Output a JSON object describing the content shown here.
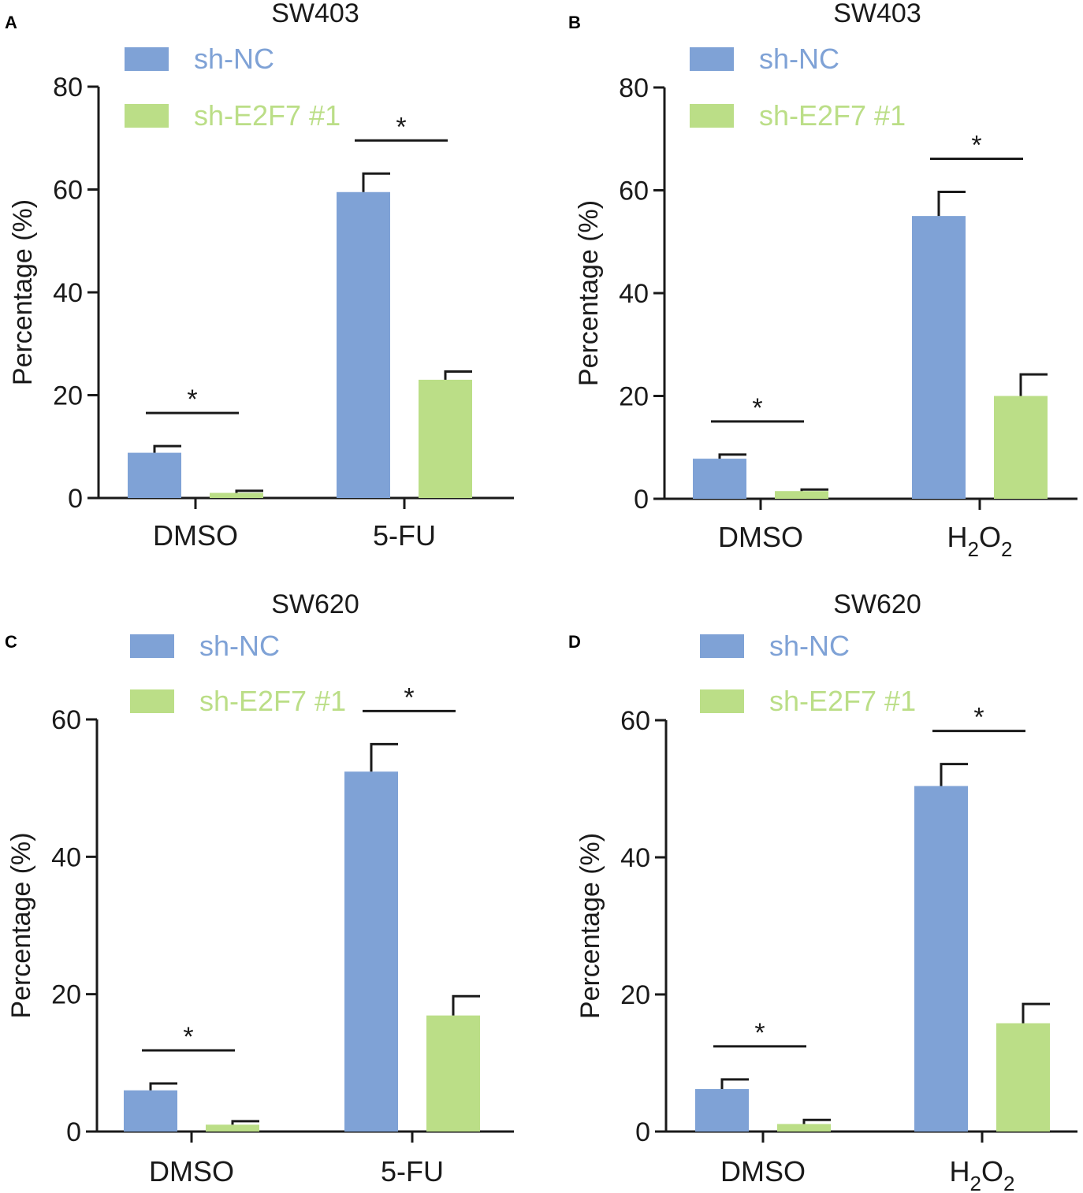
{
  "colors": {
    "sh_nc": "#7fa2d6",
    "sh_e2f7": "#bbde87",
    "axis": "#1a1a1a"
  },
  "chart_data": [
    {
      "panel": "A",
      "type": "bar",
      "title": "SW403",
      "ylabel": "Percentage (%)",
      "ylim": [
        0,
        80
      ],
      "yticks": [
        "0",
        "20",
        "40",
        "60",
        "80"
      ],
      "categories": [
        {
          "label": "DMSO"
        },
        {
          "label": "5-FU"
        }
      ],
      "series": [
        {
          "name": "sh-NC",
          "values": [
            8.8,
            59.5
          ],
          "errors": [
            1.3,
            3.6
          ]
        },
        {
          "name": "sh-E2F7 #1",
          "values": [
            1.0,
            23.0
          ],
          "errors": [
            0.4,
            1.6
          ]
        }
      ],
      "significance": [
        "*",
        "*"
      ]
    },
    {
      "panel": "B",
      "type": "bar",
      "title": "SW403",
      "ylabel": "Percentage (%)",
      "ylim": [
        0,
        80
      ],
      "yticks": [
        "0",
        "20",
        "40",
        "60",
        "80"
      ],
      "categories": [
        {
          "label": "DMSO"
        },
        {
          "base": "H",
          "sub1": "2",
          "mid": "O",
          "sub2": "2"
        }
      ],
      "series": [
        {
          "name": "sh-NC",
          "values": [
            7.8,
            55.0
          ],
          "errors": [
            0.8,
            4.7
          ]
        },
        {
          "name": "sh-E2F7 #1",
          "values": [
            1.5,
            20.0
          ],
          "errors": [
            0.3,
            4.2
          ]
        }
      ],
      "significance": [
        "*",
        "*"
      ]
    },
    {
      "panel": "C",
      "type": "bar",
      "title": "SW620",
      "ylabel": "Percentage (%)",
      "ylim": [
        0,
        60
      ],
      "yticks": [
        "0",
        "20",
        "40",
        "60"
      ],
      "categories": [
        {
          "label": "DMSO"
        },
        {
          "label": "5-FU"
        }
      ],
      "series": [
        {
          "name": "sh-NC",
          "values": [
            6.0,
            52.4
          ],
          "errors": [
            1.0,
            4.0
          ]
        },
        {
          "name": "sh-E2F7 #1",
          "values": [
            1.0,
            16.9
          ],
          "errors": [
            0.5,
            2.8
          ]
        }
      ],
      "significance": [
        "*",
        "*"
      ]
    },
    {
      "panel": "D",
      "type": "bar",
      "title": "SW620",
      "ylabel": "Percentage (%)",
      "ylim": [
        0,
        60
      ],
      "yticks": [
        "0",
        "20",
        "40",
        "60"
      ],
      "categories": [
        {
          "label": "DMSO"
        },
        {
          "base": "H",
          "sub1": "2",
          "mid": "O",
          "sub2": "2"
        }
      ],
      "series": [
        {
          "name": "sh-NC",
          "values": [
            6.2,
            50.4
          ],
          "errors": [
            1.4,
            3.2
          ]
        },
        {
          "name": "sh-E2F7 #1",
          "values": [
            1.1,
            15.8
          ],
          "errors": [
            0.6,
            2.8
          ]
        }
      ],
      "significance": [
        "*",
        "*"
      ]
    }
  ]
}
